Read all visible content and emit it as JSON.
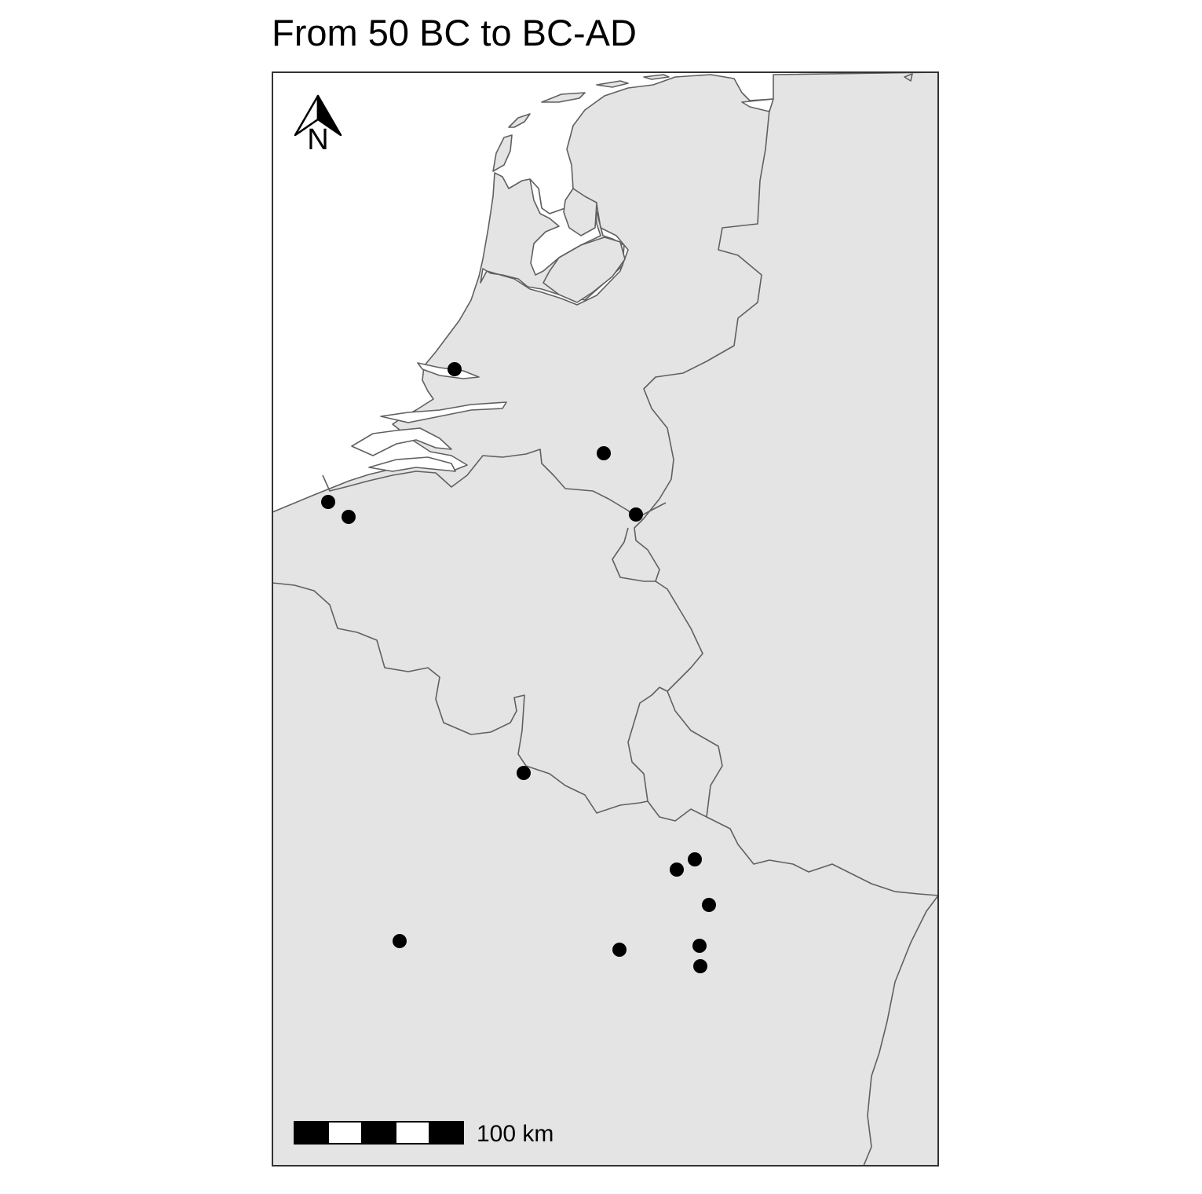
{
  "title": "From 50 BC to BC-AD",
  "north_arrow": {
    "letter": "N",
    "icon": "north-arrow-icon"
  },
  "scale_bar": {
    "label": "100 km",
    "segments": 5
  },
  "colors": {
    "land": "#e4e4e4",
    "sea": "#ffffff",
    "border": "#606060",
    "point": "#000000"
  },
  "sites": [
    {
      "id": "site-1"
    },
    {
      "id": "site-2"
    },
    {
      "id": "site-3"
    },
    {
      "id": "site-4"
    },
    {
      "id": "site-5"
    },
    {
      "id": "site-6"
    },
    {
      "id": "site-7"
    },
    {
      "id": "site-8"
    },
    {
      "id": "site-9"
    },
    {
      "id": "site-10"
    },
    {
      "id": "site-11"
    },
    {
      "id": "site-12"
    },
    {
      "id": "site-13"
    },
    {
      "id": "site-14"
    }
  ]
}
